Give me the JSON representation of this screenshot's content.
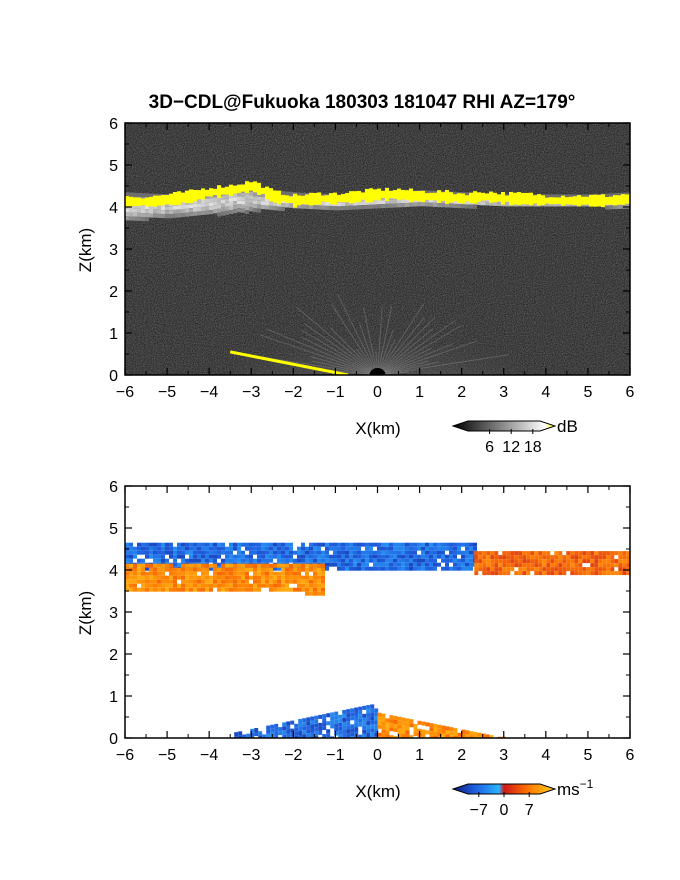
{
  "figure_title": "3D−CDL@Fukuoka 180303 181047 RHI AZ=179°",
  "chart_data": [
    {
      "type": "heatmap",
      "panel": "backscatter",
      "xlabel": "X(km)",
      "ylabel": "Z(km)",
      "xlim": [
        -6,
        6
      ],
      "ylim": [
        0,
        6
      ],
      "xticks": [
        -6,
        -5,
        -4,
        -3,
        -2,
        -1,
        0,
        1,
        2,
        3,
        4,
        5,
        6
      ],
      "yticks": [
        0,
        1,
        2,
        3,
        4,
        5,
        6
      ],
      "colorbar": {
        "unit": "dB",
        "ticks": [
          6,
          12,
          18
        ],
        "range": [
          0,
          20
        ],
        "colors": [
          "#000000",
          "#ffffff",
          "#ffff00"
        ]
      },
      "background_color": "#111111",
      "features": [
        {
          "kind": "cloud_layer",
          "x": [
            -6,
            -5,
            -4,
            -3.3,
            -3,
            -2,
            -1,
            0,
            1,
            2,
            3,
            4,
            5,
            6
          ],
          "z_top": [
            4.35,
            4.3,
            4.4,
            4.55,
            4.45,
            4.35,
            4.3,
            4.35,
            4.4,
            4.35,
            4.3,
            4.3,
            4.3,
            4.35
          ],
          "z_bottom": [
            3.7,
            3.8,
            3.85,
            3.9,
            3.95,
            4.0,
            4.0,
            4.05,
            4.05,
            4.05,
            4.05,
            4.05,
            4.05,
            4.0
          ]
        },
        {
          "kind": "saturated_band",
          "x": [
            -6,
            -5.5,
            -5,
            -4.5,
            -4,
            -3.5,
            -3,
            -2.5,
            -2,
            -1.5,
            -1,
            -0.5,
            0,
            0.5,
            1,
            1.5,
            2,
            2.5,
            3,
            3.5,
            4,
            4.5,
            5,
            5.5,
            6
          ],
          "z": [
            4.13,
            4.12,
            4.18,
            4.25,
            4.35,
            4.4,
            4.5,
            4.25,
            4.15,
            4.2,
            4.2,
            4.25,
            4.3,
            4.3,
            4.25,
            4.25,
            4.2,
            4.25,
            4.2,
            4.2,
            4.15,
            4.15,
            4.15,
            4.15,
            4.2
          ],
          "value_db": 20
        },
        {
          "kind": "near_ground_fan",
          "x_range": [
            -3.5,
            3.2
          ],
          "z_range": [
            0,
            1.6
          ],
          "peak_db": 14
        },
        {
          "kind": "ground_return_line",
          "x": [
            -3.5,
            -0.7
          ],
          "z": [
            0.55,
            0.0
          ],
          "value_db": 20
        }
      ]
    },
    {
      "type": "heatmap",
      "panel": "doppler_velocity",
      "xlabel": "X(km)",
      "ylabel": "Z(km)",
      "xlim": [
        -6,
        6
      ],
      "ylim": [
        0,
        6
      ],
      "xticks": [
        -6,
        -5,
        -4,
        -3,
        -2,
        -1,
        0,
        1,
        2,
        3,
        4,
        5,
        6
      ],
      "yticks": [
        0,
        1,
        2,
        3,
        4,
        5,
        6
      ],
      "colorbar": {
        "unit": "ms",
        "unit_exponent": "−1",
        "ticks": [
          -7,
          0,
          7
        ],
        "range": [
          -10,
          10
        ],
        "colors": [
          "#0a1a80",
          "#1f5fe0",
          "#2ab4ff",
          "#d01818",
          "#ff7a00",
          "#ffd21e"
        ]
      },
      "background_color": "#ffffff",
      "features": [
        {
          "kind": "upper_layer_approaching",
          "x_range": [
            -6,
            2.3
          ],
          "z_range": [
            4.05,
            4.65
          ],
          "velocity": -5
        },
        {
          "kind": "upper_layer_receding",
          "x_range": [
            2.3,
            6
          ],
          "z_range": [
            3.95,
            4.45
          ],
          "velocity": 4
        },
        {
          "kind": "lower_layer_receding",
          "x_range": [
            -6,
            -1.3
          ],
          "z_range": [
            3.55,
            4.15
          ],
          "velocity": 6
        },
        {
          "kind": "near_ground_approaching",
          "x_range": [
            -3.5,
            0
          ],
          "z_range": [
            0,
            0.8
          ],
          "velocity": -5
        },
        {
          "kind": "near_ground_receding",
          "x_range": [
            0,
            3.0
          ],
          "z_range": [
            0,
            0.6
          ],
          "velocity": 6
        }
      ]
    }
  ]
}
